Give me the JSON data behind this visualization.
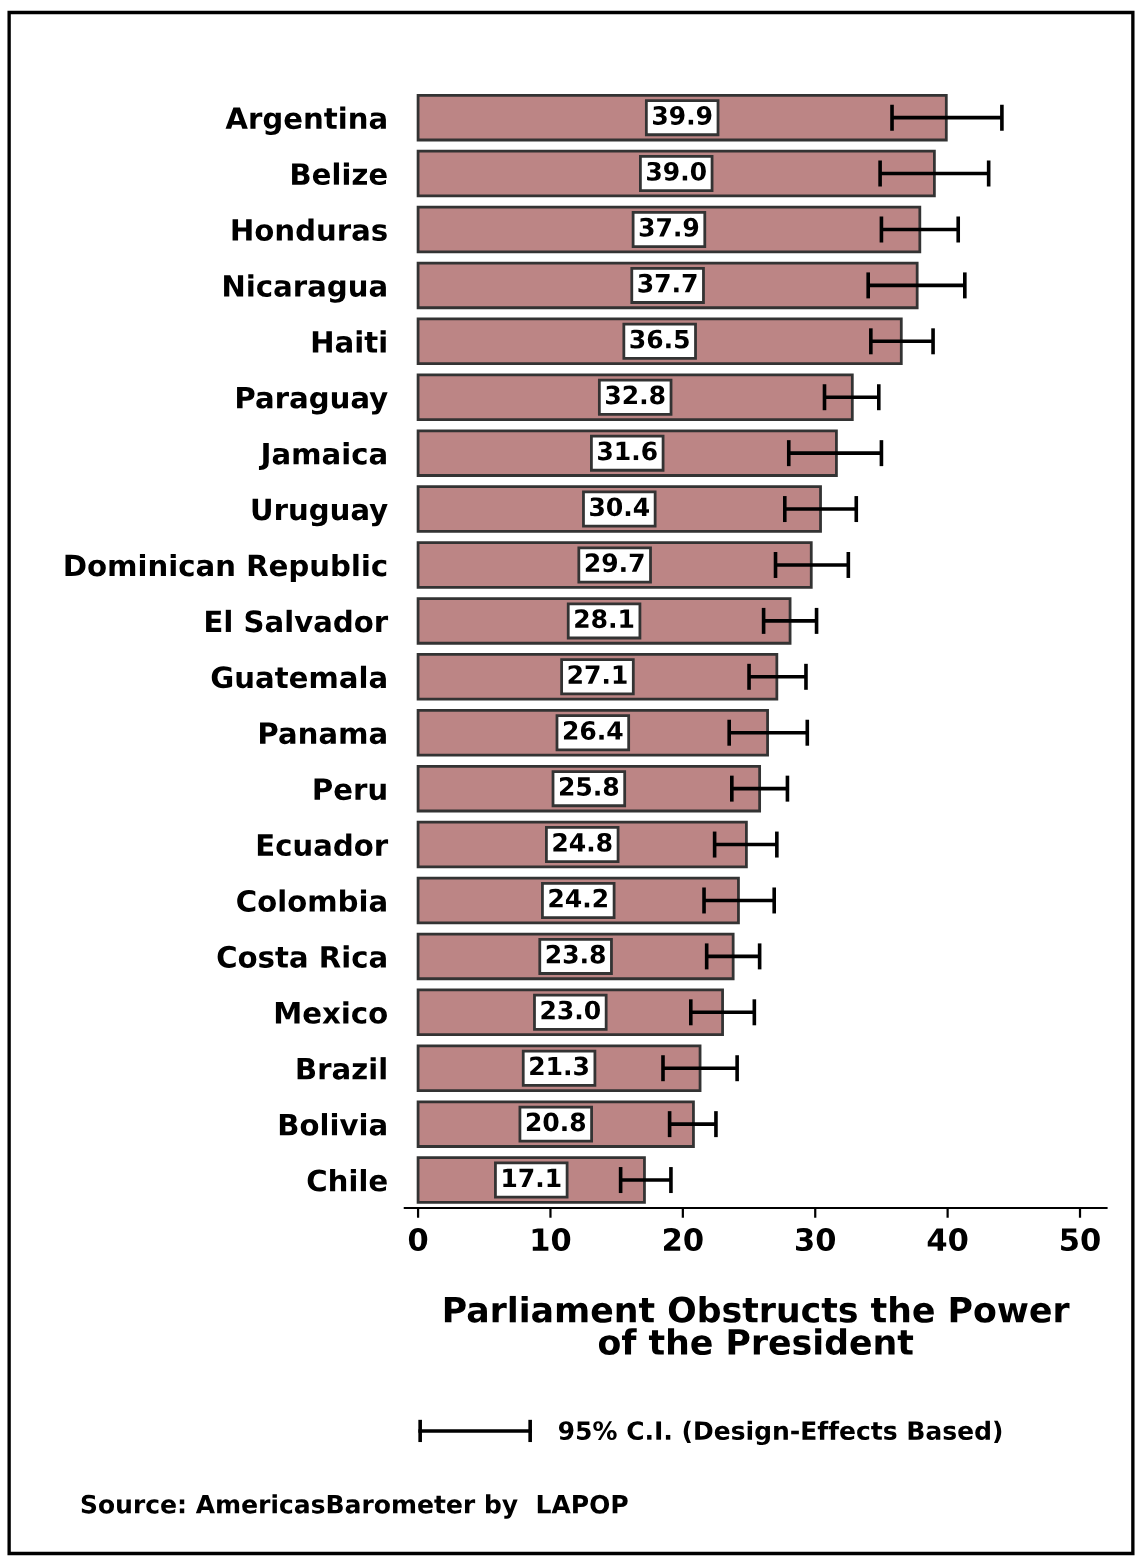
{
  "chart_data": {
    "type": "bar",
    "orientation": "horizontal",
    "xlabel": "Parliament Obstructs the Power\nof the President",
    "categories": [
      "Argentina",
      "Belize",
      "Honduras",
      "Nicaragua",
      "Haiti",
      "Paraguay",
      "Jamaica",
      "Uruguay",
      "Dominican Republic",
      "El Salvador",
      "Guatemala",
      "Panama",
      "Peru",
      "Ecuador",
      "Colombia",
      "Costa Rica",
      "Mexico",
      "Brazil",
      "Bolivia",
      "Chile"
    ],
    "series": [
      {
        "name": "95% C.I. (Design-Effects Based)",
        "color": "#bc8585",
        "values": [
          39.9,
          39.0,
          37.9,
          37.7,
          36.5,
          32.8,
          31.6,
          30.4,
          29.7,
          28.1,
          27.1,
          26.4,
          25.8,
          24.8,
          24.2,
          23.8,
          23.0,
          21.3,
          20.8,
          17.1
        ],
        "value_labels": [
          "39.9",
          "39.0",
          "37.9",
          "37.7",
          "36.5",
          "32.8",
          "31.6",
          "30.4",
          "29.7",
          "28.1",
          "27.1",
          "26.4",
          "25.8",
          "24.8",
          "24.2",
          "23.8",
          "23.0",
          "21.3",
          "20.8",
          "17.1"
        ],
        "errors": [
          [
            35.8,
            44.1
          ],
          [
            34.9,
            43.1
          ],
          [
            35.0,
            40.8
          ],
          [
            34.0,
            41.3
          ],
          [
            34.2,
            38.9
          ],
          [
            30.7,
            34.8
          ],
          [
            28.0,
            35.0
          ],
          [
            27.7,
            33.1
          ],
          [
            27.0,
            32.5
          ],
          [
            26.1,
            30.1
          ],
          [
            25.0,
            29.3
          ],
          [
            23.5,
            29.4
          ],
          [
            23.7,
            27.9
          ],
          [
            22.4,
            27.1
          ],
          [
            21.6,
            26.9
          ],
          [
            21.8,
            25.8
          ],
          [
            20.6,
            25.4
          ],
          [
            18.5,
            24.1
          ],
          [
            19.0,
            22.5
          ],
          [
            15.3,
            19.1
          ]
        ]
      }
    ],
    "xlim": [
      -1,
      52
    ],
    "xticks": [
      0,
      10,
      20,
      30,
      40,
      50
    ],
    "grid": false,
    "legend": "bottom",
    "annotations": [
      "Source: AmericasBarometer by  LAPOP"
    ]
  }
}
